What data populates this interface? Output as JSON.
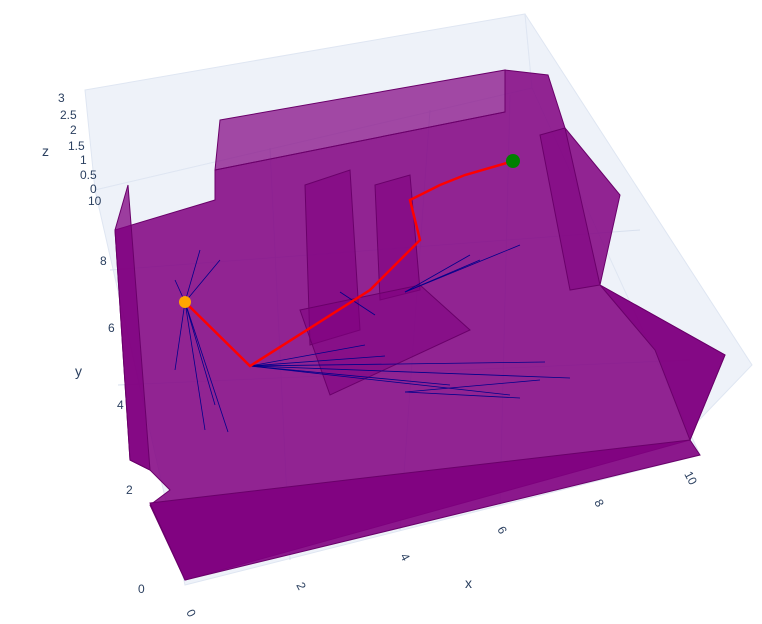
{
  "chart_data": {
    "type": "scatter3d",
    "axes": {
      "x": {
        "title": "x",
        "ticks": [
          "0",
          "2",
          "4",
          "6",
          "8",
          "10"
        ]
      },
      "y": {
        "title": "y",
        "ticks": [
          "0",
          "2",
          "4",
          "6",
          "8",
          "10"
        ]
      },
      "z": {
        "title": "z",
        "ticks": [
          "0",
          "0.5",
          "1",
          "1.5",
          "2",
          "2.5",
          "3"
        ]
      }
    },
    "markers": {
      "start": {
        "color": "#ffa500",
        "x": 0.1,
        "y": 6.5,
        "z": 3
      },
      "goal": {
        "color": "#008000",
        "x": 9.5,
        "y": 8.9,
        "z": 3
      }
    },
    "colors": {
      "obstacles": "#800080",
      "path": "#ff0000",
      "tree": "#00008b",
      "grid": "#e5ecf6",
      "axis_text": "#2a3f5f"
    },
    "grid": true,
    "legend": "none"
  }
}
